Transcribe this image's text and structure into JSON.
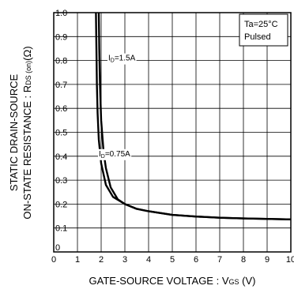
{
  "chart_data": {
    "type": "line",
    "xlabel": "GATE-SOURCE VOLTAGE : V",
    "xlabel_sub": "GS",
    "xlabel_unit": " (V)",
    "ylabel_line1": "STATIC DRAIN-SOURCE",
    "ylabel_line2": "ON-STATE RESISTANCE : R",
    "ylabel_sub": "DS (on)",
    "ylabel_unit": "(Ω)",
    "xlim": [
      0,
      10
    ],
    "ylim": [
      0,
      1.0
    ],
    "x_ticks": [
      "0",
      "1",
      "2",
      "3",
      "4",
      "5",
      "6",
      "7",
      "8",
      "9",
      "10"
    ],
    "y_ticks": [
      "0",
      "0.1",
      "0.2",
      "0.3",
      "0.4",
      "0.5",
      "0.6",
      "0.7",
      "0.8",
      "0.9",
      "1.0"
    ],
    "grid": true,
    "conditions": [
      "Ta=25°C",
      "Pulsed"
    ],
    "series": [
      {
        "name": "ID=1.5A",
        "x": [
          1.78,
          1.8,
          1.82,
          1.85,
          1.9,
          2.0,
          2.2,
          2.5,
          3.0,
          3.5,
          4.0,
          5.0,
          6.0,
          7.0,
          8.0,
          9.0,
          10.0
        ],
        "y": [
          1.0,
          0.85,
          0.7,
          0.58,
          0.47,
          0.37,
          0.28,
          0.23,
          0.2,
          0.18,
          0.17,
          0.155,
          0.148,
          0.143,
          0.14,
          0.138,
          0.136
        ]
      },
      {
        "name": "ID=0.75A",
        "x": [
          1.9,
          1.92,
          1.95,
          2.0,
          2.1,
          2.2,
          2.4,
          2.7,
          3.0,
          3.5,
          4.0,
          5.0,
          6.0,
          7.0,
          8.0,
          9.0,
          10.0
        ],
        "y": [
          1.0,
          0.85,
          0.7,
          0.55,
          0.42,
          0.35,
          0.27,
          0.22,
          0.2,
          0.18,
          0.17,
          0.155,
          0.148,
          0.143,
          0.14,
          0.138,
          0.136
        ]
      }
    ],
    "annotations": [
      {
        "text": "I",
        "sub": "D",
        "rest": "=1.5A",
        "at": [
          2.3,
          0.8
        ]
      },
      {
        "text": "I",
        "sub": "D",
        "rest": "=0.75A",
        "at": [
          1.9,
          0.4
        ]
      }
    ]
  }
}
